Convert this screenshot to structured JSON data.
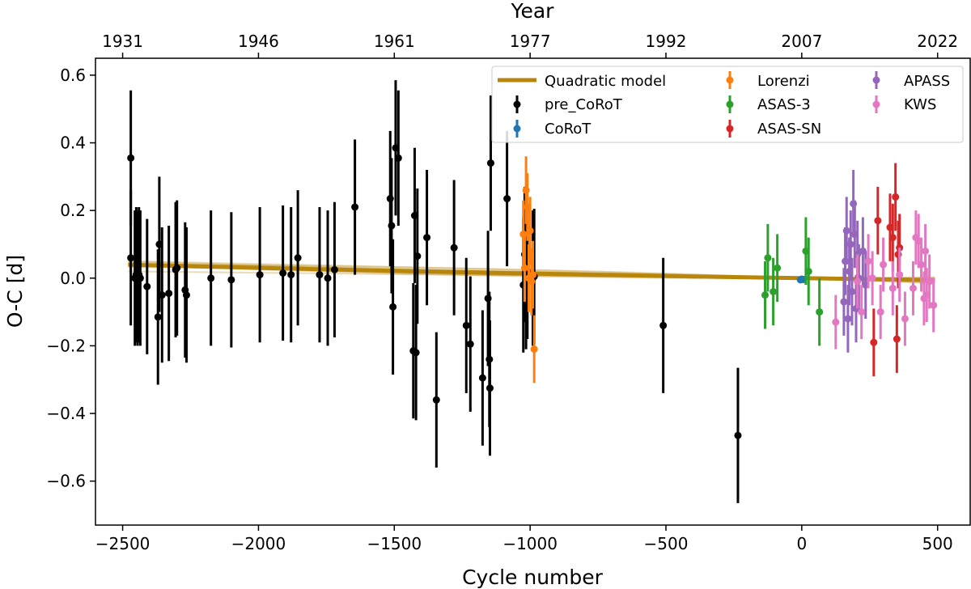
{
  "chart_data": {
    "type": "scatter",
    "xlabel": "Cycle number",
    "ylabel": "O-C [d]",
    "top_axis_label": "Year",
    "xlim": [
      -2600,
      620
    ],
    "ylim": [
      -0.73,
      0.65
    ],
    "x_ticks": [
      -2500,
      -2000,
      -1500,
      -1000,
      -500,
      0,
      500
    ],
    "x_tick_labels": [
      "−2500",
      "−2000",
      "−1500",
      "−1000",
      "−500",
      "0",
      "500"
    ],
    "y_ticks": [
      -0.6,
      -0.4,
      -0.2,
      0.0,
      0.2,
      0.4,
      0.6
    ],
    "y_tick_labels": [
      "−0.6",
      "−0.4",
      "−0.2",
      "0.0",
      "0.2",
      "0.4",
      "0.6"
    ],
    "top_ticks": [
      {
        "cycle": -2500,
        "label": "1931"
      },
      {
        "cycle": -2000,
        "label": "1946"
      },
      {
        "cycle": -1500,
        "label": "1961"
      },
      {
        "cycle": -1000,
        "label": "1977"
      },
      {
        "cycle": -500,
        "label": "1992"
      },
      {
        "cycle": 0,
        "label": "2007"
      },
      {
        "cycle": 500,
        "label": "2022"
      }
    ],
    "legend_position": "upper-right",
    "model": {
      "name": "Quadratic model",
      "color": "#b8860b",
      "x_range": [
        -2480,
        490
      ],
      "best_fit": {
        "a": 0.0,
        "b": -1.2e-05,
        "c": 1.6e-09
      },
      "sample_curves": [
        {
          "b": -3e-05,
          "c": -5.5e-09
        },
        {
          "b": -2.2e-05,
          "c": -3.5e-09
        },
        {
          "b": -1.8e-05,
          "c": 0.0
        },
        {
          "b": -1.5e-05,
          "c": 2e-09
        },
        {
          "b": -1e-05,
          "c": 3e-09
        },
        {
          "b": -6e-06,
          "c": 4.5e-09
        },
        {
          "b": -2e-06,
          "c": 6e-09
        },
        {
          "b": 2e-06,
          "c": 7.5e-09
        },
        {
          "b": -2.5e-05,
          "c": -2e-09
        },
        {
          "b": -8e-06,
          "c": 0.0
        }
      ]
    },
    "series": [
      {
        "name": "pre_CoRoT",
        "color": "#000000",
        "points": [
          {
            "x": -2470,
            "y": 0.355,
            "err": 0.2
          },
          {
            "x": -2470,
            "y": 0.06,
            "err": 0.2
          },
          {
            "x": -2455,
            "y": 0.0,
            "err": 0.2
          },
          {
            "x": -2450,
            "y": 0.01,
            "err": 0.2
          },
          {
            "x": -2445,
            "y": 0.0,
            "err": 0.2
          },
          {
            "x": -2440,
            "y": 0.01,
            "err": 0.2
          },
          {
            "x": -2435,
            "y": 0.0,
            "err": 0.2
          },
          {
            "x": -2410,
            "y": -0.025,
            "err": 0.2
          },
          {
            "x": -2370,
            "y": -0.115,
            "err": 0.2
          },
          {
            "x": -2365,
            "y": 0.1,
            "err": 0.2
          },
          {
            "x": -2355,
            "y": -0.05,
            "err": 0.2
          },
          {
            "x": -2330,
            "y": -0.045,
            "err": 0.2
          },
          {
            "x": -2305,
            "y": 0.025,
            "err": 0.2
          },
          {
            "x": -2300,
            "y": 0.03,
            "err": 0.2
          },
          {
            "x": -2270,
            "y": -0.035,
            "err": 0.2
          },
          {
            "x": -2265,
            "y": -0.05,
            "err": 0.2
          },
          {
            "x": -2175,
            "y": 0.0,
            "err": 0.2
          },
          {
            "x": -2100,
            "y": -0.005,
            "err": 0.2
          },
          {
            "x": -1995,
            "y": 0.01,
            "err": 0.2
          },
          {
            "x": -1910,
            "y": 0.015,
            "err": 0.2
          },
          {
            "x": -1880,
            "y": 0.01,
            "err": 0.2
          },
          {
            "x": -1855,
            "y": 0.06,
            "err": 0.2
          },
          {
            "x": -1775,
            "y": 0.01,
            "err": 0.2
          },
          {
            "x": -1745,
            "y": 0.0,
            "err": 0.2
          },
          {
            "x": -1720,
            "y": 0.025,
            "err": 0.2
          },
          {
            "x": -1645,
            "y": 0.21,
            "err": 0.2
          },
          {
            "x": -1515,
            "y": 0.235,
            "err": 0.2
          },
          {
            "x": -1510,
            "y": 0.155,
            "err": 0.2
          },
          {
            "x": -1505,
            "y": -0.085,
            "err": 0.2
          },
          {
            "x": -1495,
            "y": 0.385,
            "err": 0.2
          },
          {
            "x": -1485,
            "y": 0.355,
            "err": 0.2
          },
          {
            "x": -1430,
            "y": -0.215,
            "err": 0.2
          },
          {
            "x": -1425,
            "y": 0.185,
            "err": 0.2
          },
          {
            "x": -1420,
            "y": -0.22,
            "err": 0.2
          },
          {
            "x": -1415,
            "y": 0.065,
            "err": 0.2
          },
          {
            "x": -1380,
            "y": 0.12,
            "err": 0.2
          },
          {
            "x": -1345,
            "y": -0.36,
            "err": 0.2
          },
          {
            "x": -1280,
            "y": 0.09,
            "err": 0.2
          },
          {
            "x": -1235,
            "y": -0.14,
            "err": 0.2
          },
          {
            "x": -1220,
            "y": -0.195,
            "err": 0.2
          },
          {
            "x": -1175,
            "y": -0.295,
            "err": 0.2
          },
          {
            "x": -1155,
            "y": -0.06,
            "err": 0.2
          },
          {
            "x": -1150,
            "y": -0.24,
            "err": 0.2
          },
          {
            "x": -1148,
            "y": -0.325,
            "err": 0.2
          },
          {
            "x": -1145,
            "y": 0.34,
            "err": 0.2
          },
          {
            "x": -1085,
            "y": 0.235,
            "err": 0.2
          },
          {
            "x": -1025,
            "y": -0.02,
            "err": 0.2
          },
          {
            "x": -1020,
            "y": 0.07,
            "err": 0.2
          },
          {
            "x": -1015,
            "y": -0.01,
            "err": 0.2
          },
          {
            "x": -1010,
            "y": 0.02,
            "err": 0.2
          },
          {
            "x": -990,
            "y": 0.0,
            "err": 0.2
          },
          {
            "x": -985,
            "y": 0.005,
            "err": 0.2
          },
          {
            "x": -510,
            "y": -0.14,
            "err": 0.2
          },
          {
            "x": -235,
            "y": -0.465,
            "err": 0.2
          }
        ]
      },
      {
        "name": "CoRoT",
        "color": "#1f77b4",
        "points": [
          {
            "x": -5,
            "y": -0.005,
            "err": 0.01
          },
          {
            "x": 0,
            "y": -0.003,
            "err": 0.01
          },
          {
            "x": 5,
            "y": -0.004,
            "err": 0.01
          }
        ]
      },
      {
        "name": "Lorenzi",
        "color": "#ff7f0e",
        "points": [
          {
            "x": -1025,
            "y": 0.13,
            "err": 0.1
          },
          {
            "x": -1020,
            "y": 0.03,
            "err": 0.1
          },
          {
            "x": -1015,
            "y": 0.26,
            "err": 0.1
          },
          {
            "x": -1010,
            "y": 0.21,
            "err": 0.1
          },
          {
            "x": -1005,
            "y": 0.0,
            "err": 0.1
          },
          {
            "x": -1000,
            "y": 0.14,
            "err": 0.1
          },
          {
            "x": -995,
            "y": -0.01,
            "err": 0.1
          },
          {
            "x": -990,
            "y": 0.01,
            "err": 0.1
          },
          {
            "x": -985,
            "y": -0.21,
            "err": 0.1
          }
        ]
      },
      {
        "name": "ASAS-3",
        "color": "#2ca02c",
        "points": [
          {
            "x": -135,
            "y": -0.05,
            "err": 0.1
          },
          {
            "x": -125,
            "y": 0.06,
            "err": 0.1
          },
          {
            "x": -105,
            "y": -0.04,
            "err": 0.1
          },
          {
            "x": -90,
            "y": 0.03,
            "err": 0.1
          },
          {
            "x": 15,
            "y": 0.08,
            "err": 0.1
          },
          {
            "x": 25,
            "y": 0.02,
            "err": 0.1
          },
          {
            "x": 65,
            "y": -0.1,
            "err": 0.1
          }
        ]
      },
      {
        "name": "ASAS-SN",
        "color": "#d62728",
        "points": [
          {
            "x": 265,
            "y": -0.19,
            "err": 0.1
          },
          {
            "x": 280,
            "y": 0.17,
            "err": 0.1
          },
          {
            "x": 325,
            "y": 0.15,
            "err": 0.1
          },
          {
            "x": 335,
            "y": 0.12,
            "err": 0.1
          },
          {
            "x": 345,
            "y": 0.24,
            "err": 0.1
          },
          {
            "x": 350,
            "y": -0.18,
            "err": 0.1
          },
          {
            "x": 355,
            "y": 0.07,
            "err": 0.1
          },
          {
            "x": 360,
            "y": 0.09,
            "err": 0.1
          }
        ]
      },
      {
        "name": "APASS",
        "color": "#9467bd",
        "points": [
          {
            "x": 155,
            "y": -0.07,
            "err": 0.1
          },
          {
            "x": 160,
            "y": 0.05,
            "err": 0.1
          },
          {
            "x": 165,
            "y": 0.14,
            "err": 0.1
          },
          {
            "x": 170,
            "y": -0.12,
            "err": 0.1
          },
          {
            "x": 175,
            "y": 0.02,
            "err": 0.1
          },
          {
            "x": 180,
            "y": 0.1,
            "err": 0.1
          },
          {
            "x": 185,
            "y": -0.04,
            "err": 0.1
          },
          {
            "x": 190,
            "y": 0.22,
            "err": 0.1
          },
          {
            "x": 195,
            "y": 0.13,
            "err": 0.1
          },
          {
            "x": 200,
            "y": -0.09,
            "err": 0.1
          },
          {
            "x": 205,
            "y": 0.07,
            "err": 0.1
          },
          {
            "x": 210,
            "y": 0.0,
            "err": 0.1
          },
          {
            "x": 225,
            "y": 0.08,
            "err": 0.1
          },
          {
            "x": 235,
            "y": -0.02,
            "err": 0.1
          }
        ]
      },
      {
        "name": "KWS",
        "color": "#e377c2",
        "points": [
          {
            "x": 125,
            "y": -0.13,
            "err": 0.08
          },
          {
            "x": 205,
            "y": -0.01,
            "err": 0.08
          },
          {
            "x": 220,
            "y": -0.1,
            "err": 0.08
          },
          {
            "x": 245,
            "y": 0.05,
            "err": 0.08
          },
          {
            "x": 260,
            "y": 0.0,
            "err": 0.08
          },
          {
            "x": 290,
            "y": -0.1,
            "err": 0.08
          },
          {
            "x": 300,
            "y": 0.04,
            "err": 0.08
          },
          {
            "x": 335,
            "y": -0.03,
            "err": 0.08
          },
          {
            "x": 360,
            "y": 0.01,
            "err": 0.08
          },
          {
            "x": 380,
            "y": -0.12,
            "err": 0.08
          },
          {
            "x": 410,
            "y": -0.03,
            "err": 0.08
          },
          {
            "x": 420,
            "y": 0.12,
            "err": 0.08
          },
          {
            "x": 430,
            "y": 0.11,
            "err": 0.08
          },
          {
            "x": 440,
            "y": 0.04,
            "err": 0.08
          },
          {
            "x": 450,
            "y": -0.06,
            "err": 0.08
          },
          {
            "x": 455,
            "y": 0.08,
            "err": 0.08
          },
          {
            "x": 460,
            "y": -0.05,
            "err": 0.08
          },
          {
            "x": 470,
            "y": -0.01,
            "err": 0.08
          },
          {
            "x": 485,
            "y": -0.08,
            "err": 0.08
          }
        ]
      }
    ]
  }
}
